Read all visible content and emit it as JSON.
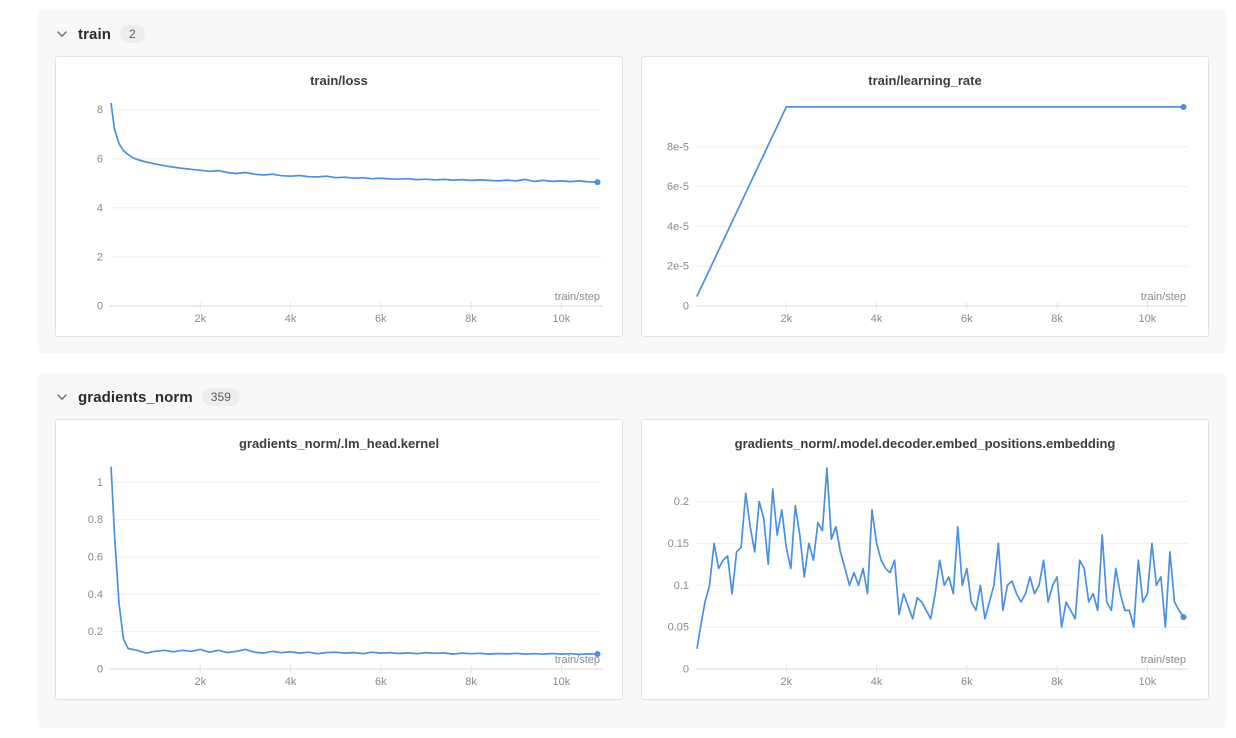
{
  "colors": {
    "line": "#4a90e2",
    "grid": "#efefef",
    "axis": "#d9d9d9",
    "tick_mark": "#e0e0e0",
    "tick_text": "#8a8a8a",
    "title_text": "#3d3d3d",
    "section_bg": "#f8f8f8",
    "panel_border": "#e2e2e2",
    "badge_bg": "#ededed"
  },
  "sections": [
    {
      "label": "train",
      "badge": "2",
      "chevron": "chevron-down"
    },
    {
      "label": "gradients_norm",
      "badge": "359",
      "chevron": "chevron-down"
    }
  ],
  "chart_data": [
    {
      "type": "line",
      "title": "train/loss",
      "xlabel": "train/step",
      "xlim": [
        0,
        10900
      ],
      "ylim": [
        0,
        8.6
      ],
      "grid": true,
      "legend": "none",
      "endpoint_dot": true,
      "x_ticks": [
        {
          "v": 2000,
          "label": "2k"
        },
        {
          "v": 4000,
          "label": "4k"
        },
        {
          "v": 6000,
          "label": "6k"
        },
        {
          "v": 8000,
          "label": "8k"
        },
        {
          "v": 10000,
          "label": "10k"
        }
      ],
      "y_ticks": [
        {
          "v": 0,
          "label": "0"
        },
        {
          "v": 2,
          "label": "2"
        },
        {
          "v": 4,
          "label": "4"
        },
        {
          "v": 6,
          "label": "6"
        },
        {
          "v": 8,
          "label": "8"
        }
      ],
      "x": [
        25,
        100,
        200,
        300,
        400,
        500,
        600,
        800,
        1000,
        1200,
        1400,
        1600,
        1800,
        2000,
        2200,
        2400,
        2600,
        2800,
        3000,
        3200,
        3400,
        3600,
        3800,
        4000,
        4200,
        4400,
        4600,
        4800,
        5000,
        5200,
        5400,
        5600,
        5800,
        6000,
        6200,
        6400,
        6600,
        6800,
        7000,
        7200,
        7400,
        7600,
        7800,
        8000,
        8200,
        8400,
        8600,
        8800,
        9000,
        9200,
        9400,
        9600,
        9800,
        10000,
        10200,
        10400,
        10600,
        10800
      ],
      "y": [
        8.25,
        7.2,
        6.62,
        6.33,
        6.17,
        6.05,
        5.97,
        5.87,
        5.79,
        5.72,
        5.66,
        5.61,
        5.57,
        5.53,
        5.49,
        5.52,
        5.44,
        5.4,
        5.44,
        5.37,
        5.34,
        5.37,
        5.31,
        5.29,
        5.32,
        5.27,
        5.26,
        5.29,
        5.23,
        5.25,
        5.21,
        5.23,
        5.19,
        5.21,
        5.18,
        5.17,
        5.19,
        5.15,
        5.17,
        5.14,
        5.16,
        5.13,
        5.15,
        5.12,
        5.14,
        5.12,
        5.1,
        5.13,
        5.1,
        5.16,
        5.08,
        5.12,
        5.08,
        5.1,
        5.07,
        5.1,
        5.06,
        5.05
      ]
    },
    {
      "type": "line",
      "title": "train/learning_rate",
      "xlabel": "train/step",
      "xlim": [
        0,
        10900
      ],
      "ylim": [
        0,
        0.000106
      ],
      "grid": true,
      "legend": "none",
      "endpoint_dot": true,
      "x_ticks": [
        {
          "v": 2000,
          "label": "2k"
        },
        {
          "v": 4000,
          "label": "4k"
        },
        {
          "v": 6000,
          "label": "6k"
        },
        {
          "v": 8000,
          "label": "8k"
        },
        {
          "v": 10000,
          "label": "10k"
        }
      ],
      "y_ticks": [
        {
          "v": 0,
          "label": "0"
        },
        {
          "v": 2e-05,
          "label": "2e-5"
        },
        {
          "v": 4e-05,
          "label": "4e-5"
        },
        {
          "v": 6e-05,
          "label": "6e-5"
        },
        {
          "v": 8e-05,
          "label": "8e-5"
        }
      ],
      "x": [
        25,
        2000,
        10800
      ],
      "y": [
        5e-06,
        0.0001,
        0.0001
      ]
    },
    {
      "type": "line",
      "title": "gradients_norm/.lm_head.kernel",
      "xlabel": "train/step",
      "xlim": [
        0,
        10900
      ],
      "ylim": [
        0,
        1.13
      ],
      "grid": true,
      "legend": "none",
      "endpoint_dot": true,
      "x_ticks": [
        {
          "v": 2000,
          "label": "2k"
        },
        {
          "v": 4000,
          "label": "4k"
        },
        {
          "v": 6000,
          "label": "6k"
        },
        {
          "v": 8000,
          "label": "8k"
        },
        {
          "v": 10000,
          "label": "10k"
        }
      ],
      "y_ticks": [
        {
          "v": 0,
          "label": "0"
        },
        {
          "v": 0.2,
          "label": "0.2"
        },
        {
          "v": 0.4,
          "label": "0.4"
        },
        {
          "v": 0.6,
          "label": "0.6"
        },
        {
          "v": 0.8,
          "label": "0.8"
        },
        {
          "v": 1,
          "label": "1"
        }
      ],
      "x": [
        25,
        100,
        200,
        300,
        400,
        500,
        600,
        800,
        1000,
        1200,
        1400,
        1600,
        1800,
        2000,
        2200,
        2400,
        2600,
        2800,
        3000,
        3200,
        3400,
        3600,
        3800,
        4000,
        4200,
        4400,
        4600,
        4800,
        5000,
        5200,
        5400,
        5600,
        5800,
        6000,
        6200,
        6400,
        6600,
        6800,
        7000,
        7200,
        7400,
        7600,
        7800,
        8000,
        8200,
        8400,
        8600,
        8800,
        9000,
        9200,
        9400,
        9600,
        9800,
        10000,
        10200,
        10400,
        10600,
        10800
      ],
      "y": [
        1.08,
        0.72,
        0.35,
        0.16,
        0.11,
        0.105,
        0.1,
        0.085,
        0.095,
        0.1,
        0.092,
        0.1,
        0.095,
        0.105,
        0.09,
        0.1,
        0.088,
        0.095,
        0.105,
        0.09,
        0.085,
        0.095,
        0.088,
        0.092,
        0.085,
        0.09,
        0.082,
        0.088,
        0.09,
        0.085,
        0.088,
        0.082,
        0.09,
        0.085,
        0.088,
        0.083,
        0.086,
        0.082,
        0.088,
        0.084,
        0.086,
        0.08,
        0.085,
        0.082,
        0.084,
        0.08,
        0.083,
        0.081,
        0.084,
        0.08,
        0.082,
        0.079,
        0.083,
        0.08,
        0.082,
        0.078,
        0.081,
        0.08
      ]
    },
    {
      "type": "line",
      "title": "gradients_norm/.model.decoder.embed_positions.embedding",
      "xlabel": "train/step",
      "xlim": [
        0,
        10900
      ],
      "ylim": [
        0,
        0.252
      ],
      "grid": true,
      "legend": "none",
      "endpoint_dot": true,
      "x_ticks": [
        {
          "v": 2000,
          "label": "2k"
        },
        {
          "v": 4000,
          "label": "4k"
        },
        {
          "v": 6000,
          "label": "6k"
        },
        {
          "v": 8000,
          "label": "8k"
        },
        {
          "v": 10000,
          "label": "10k"
        }
      ],
      "y_ticks": [
        {
          "v": 0,
          "label": "0"
        },
        {
          "v": 0.05,
          "label": "0.05"
        },
        {
          "v": 0.1,
          "label": "0.1"
        },
        {
          "v": 0.15,
          "label": "0.15"
        },
        {
          "v": 0.2,
          "label": "0.2"
        }
      ],
      "x": [
        25,
        100,
        200,
        300,
        400,
        500,
        600,
        700,
        800,
        900,
        1000,
        1100,
        1200,
        1300,
        1400,
        1500,
        1600,
        1700,
        1800,
        1900,
        2000,
        2100,
        2200,
        2300,
        2400,
        2500,
        2600,
        2700,
        2800,
        2900,
        3000,
        3100,
        3200,
        3300,
        3400,
        3500,
        3600,
        3700,
        3800,
        3900,
        4000,
        4100,
        4200,
        4300,
        4400,
        4500,
        4600,
        4700,
        4800,
        4900,
        5000,
        5100,
        5200,
        5300,
        5400,
        5500,
        5600,
        5700,
        5800,
        5900,
        6000,
        6100,
        6200,
        6300,
        6400,
        6500,
        6600,
        6700,
        6800,
        6900,
        7000,
        7100,
        7200,
        7300,
        7400,
        7500,
        7600,
        7700,
        7800,
        7900,
        8000,
        8100,
        8200,
        8300,
        8400,
        8500,
        8600,
        8700,
        8800,
        8900,
        9000,
        9100,
        9200,
        9300,
        9400,
        9500,
        9600,
        9700,
        9800,
        9900,
        10000,
        10100,
        10200,
        10300,
        10400,
        10500,
        10600,
        10700,
        10800
      ],
      "y": [
        0.025,
        0.05,
        0.08,
        0.1,
        0.15,
        0.12,
        0.13,
        0.135,
        0.09,
        0.14,
        0.145,
        0.21,
        0.17,
        0.14,
        0.2,
        0.18,
        0.125,
        0.215,
        0.16,
        0.19,
        0.145,
        0.12,
        0.195,
        0.16,
        0.11,
        0.15,
        0.13,
        0.175,
        0.165,
        0.24,
        0.155,
        0.17,
        0.14,
        0.12,
        0.1,
        0.115,
        0.1,
        0.12,
        0.09,
        0.19,
        0.15,
        0.13,
        0.12,
        0.115,
        0.13,
        0.065,
        0.09,
        0.075,
        0.06,
        0.085,
        0.08,
        0.07,
        0.06,
        0.09,
        0.13,
        0.1,
        0.11,
        0.09,
        0.17,
        0.1,
        0.12,
        0.08,
        0.07,
        0.1,
        0.06,
        0.08,
        0.1,
        0.15,
        0.07,
        0.1,
        0.105,
        0.09,
        0.08,
        0.09,
        0.11,
        0.09,
        0.1,
        0.13,
        0.08,
        0.1,
        0.11,
        0.05,
        0.08,
        0.07,
        0.06,
        0.13,
        0.12,
        0.08,
        0.09,
        0.07,
        0.16,
        0.08,
        0.07,
        0.12,
        0.09,
        0.07,
        0.07,
        0.05,
        0.13,
        0.08,
        0.09,
        0.15,
        0.1,
        0.11,
        0.05,
        0.14,
        0.08,
        0.07,
        0.062
      ]
    }
  ]
}
